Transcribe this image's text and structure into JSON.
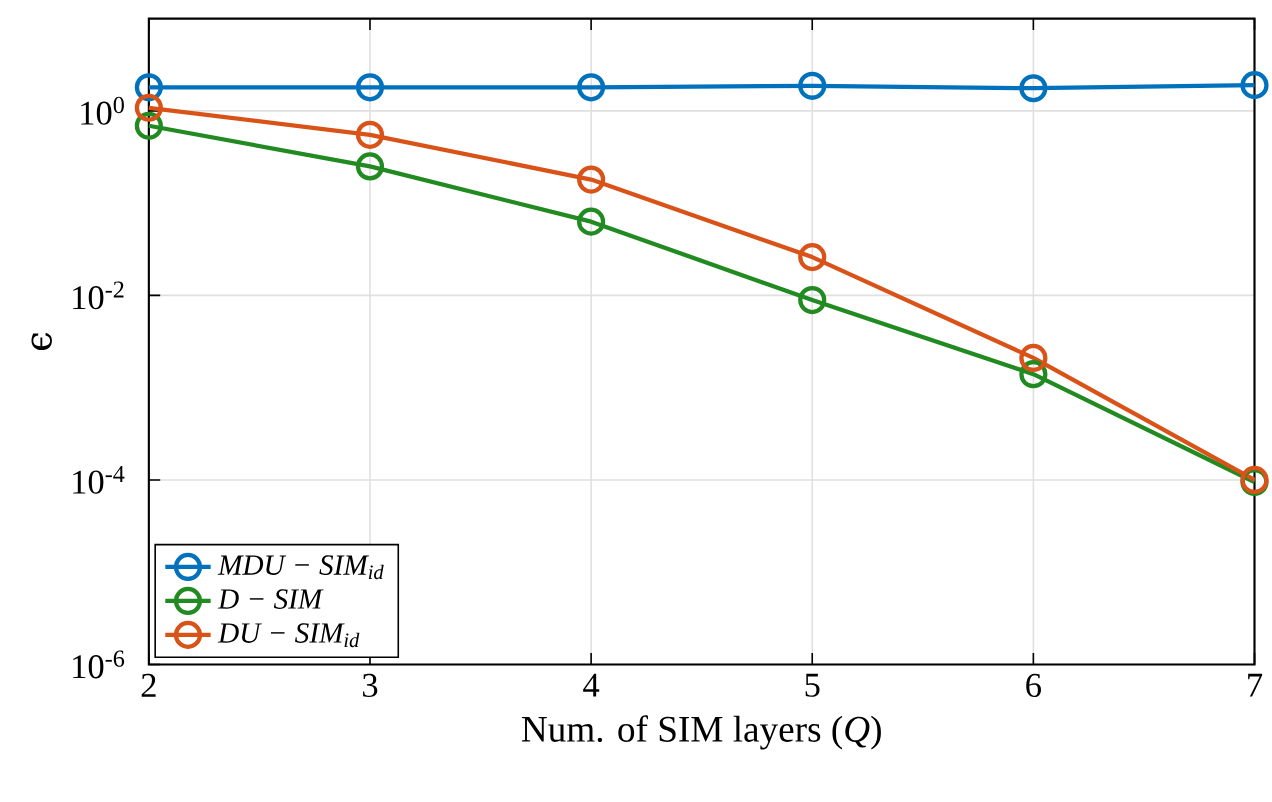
{
  "chart_data": {
    "type": "line",
    "xlabel": "Num. of SIM layers (*Q*)",
    "ylabel": "ϵ",
    "x": [
      2,
      3,
      4,
      5,
      6,
      7
    ],
    "series": [
      {
        "name": "MDU − SIM$_{id}$",
        "color": "#0072bd",
        "values": [
          1.8,
          1.8,
          1.8,
          1.87,
          1.76,
          1.9
        ]
      },
      {
        "name": "D − SIM",
        "color": "#218a21",
        "values": [
          0.69,
          0.25,
          0.063,
          0.0089,
          0.0014,
          9.5e-05
        ]
      },
      {
        "name": "DU − SIM$_{id}$",
        "color": "#d95319",
        "values": [
          1.08,
          0.55,
          0.18,
          0.026,
          0.0021,
          0.0001
        ]
      }
    ],
    "xlim": [
      2,
      7
    ],
    "ylim": [
      1e-06,
      10
    ],
    "xticks": [
      2,
      3,
      4,
      5,
      6,
      7
    ],
    "yticks": [
      {
        "value": 1e-06,
        "label": "10$^{-6}$"
      },
      {
        "value": 0.0001,
        "label": "10$^{-4}$"
      },
      {
        "value": 0.01,
        "label": "10$^{-2}$"
      },
      {
        "value": 1,
        "label": "10$^{0}$"
      }
    ],
    "log": "y",
    "grid": true,
    "legend": "bottom left",
    "marker": "circle",
    "line_style": "solid"
  }
}
